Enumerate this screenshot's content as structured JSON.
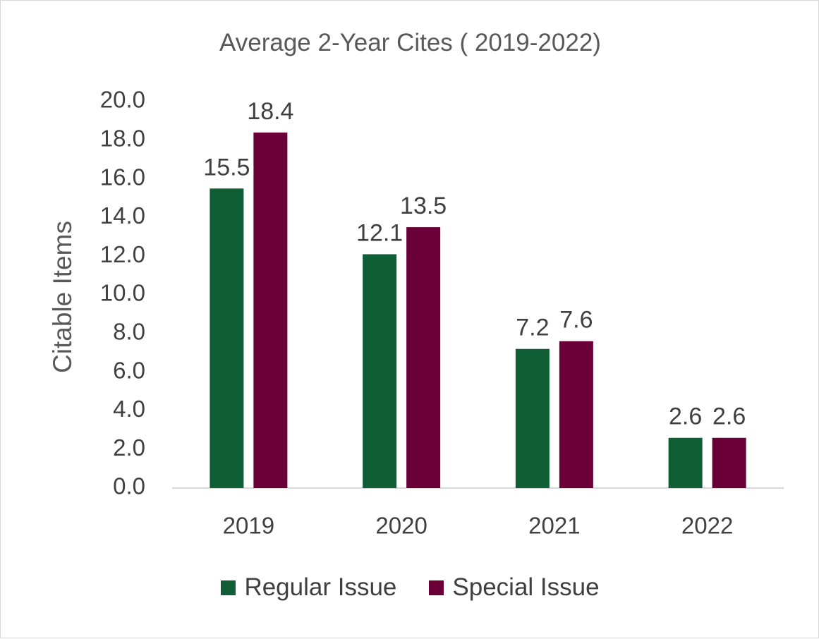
{
  "chart_data": {
    "type": "bar",
    "title": "Average 2-Year Cites ( 2019-2022)",
    "xlabel": "",
    "ylabel": "Citable Items",
    "categories": [
      "2019",
      "2020",
      "2021",
      "2022"
    ],
    "ylim": [
      0,
      20
    ],
    "yticks": [
      "0.0",
      "2.0",
      "4.0",
      "6.0",
      "8.0",
      "10.0",
      "12.0",
      "14.0",
      "16.0",
      "18.0",
      "20.0"
    ],
    "grid": false,
    "legend_position": "bottom",
    "series": [
      {
        "name": "Regular Issue",
        "color": "#0f5e36",
        "values": [
          15.5,
          12.1,
          7.2,
          2.6
        ]
      },
      {
        "name": "Special Issue",
        "color": "#6b0039",
        "values": [
          18.4,
          13.5,
          7.6,
          2.6
        ]
      }
    ]
  }
}
